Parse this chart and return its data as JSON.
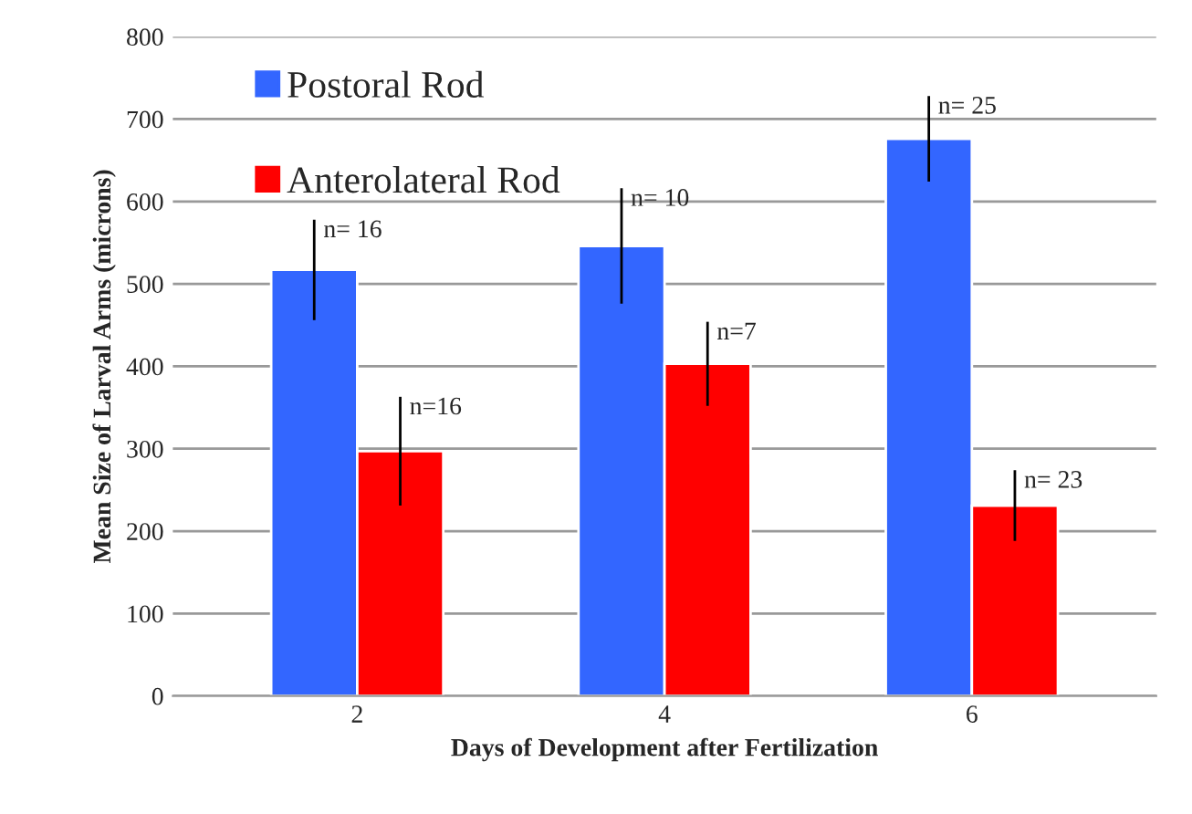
{
  "chart_data": {
    "type": "bar",
    "xlabel": "Days of Development after Fertilization",
    "ylabel": "Mean Size of Larval Arms (microns)",
    "categories": [
      "2",
      "4",
      "6"
    ],
    "series": [
      {
        "name": "Postoral Rod",
        "color": "#3366ff",
        "values": [
          517,
          546,
          676
        ],
        "errors": [
          61,
          70,
          52
        ]
      },
      {
        "name": "Anterolateral Rod",
        "color": "#ff0000",
        "values": [
          297,
          403,
          231
        ],
        "errors": [
          66,
          51,
          43
        ]
      }
    ],
    "annotations": [
      "n= 16",
      "n=16",
      "n= 10",
      "n=7",
      "n= 25",
      "n= 23"
    ],
    "ylim": [
      0,
      800
    ],
    "yticks": [
      0,
      100,
      200,
      300,
      400,
      500,
      600,
      700,
      800
    ],
    "grid": "y",
    "legend": "top left"
  }
}
